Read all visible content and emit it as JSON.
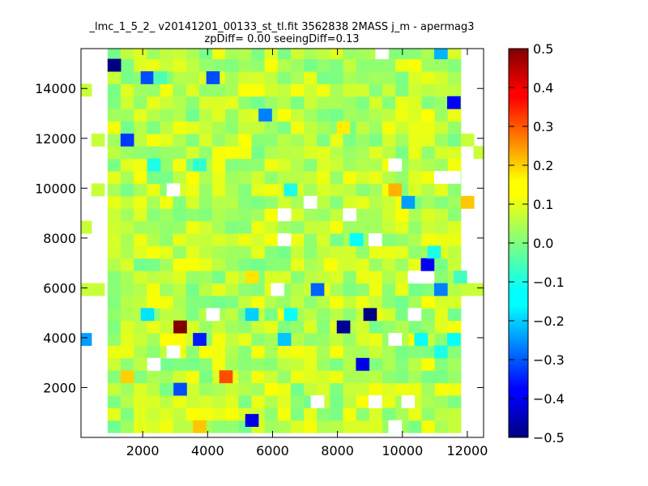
{
  "chart_data": {
    "type": "heatmap",
    "title_line1": "_lmc_1_5_2_ v20141201_00133_st_tl.fit 3562838 2MASS j_m - apermag3",
    "title_line2": "zpDiff= 0.00 seeingDiff=0.13",
    "xlim": [
      100,
      12500
    ],
    "ylim": [
      0,
      15600
    ],
    "xticks": [
      2000,
      4000,
      6000,
      8000,
      10000,
      12000
    ],
    "yticks": [
      2000,
      4000,
      6000,
      8000,
      10000,
      12000,
      14000
    ],
    "grid": false,
    "colormap": "jet",
    "clim": [
      -0.5,
      0.5
    ],
    "colorbar_ticks": [
      "0.5",
      "0.4",
      "0.3",
      "0.2",
      "0.1",
      "0.0",
      "−0.1",
      "−0.2",
      "−0.3",
      "−0.4",
      "−0.5"
    ],
    "cells_note": "bin centers in data units; value = magnitude difference",
    "cells": [
      {
        "x": 1120,
        "y": 14940,
        "v": -0.5
      },
      {
        "x": 2140,
        "y": 14440,
        "v": -0.3
      },
      {
        "x": 4160,
        "y": 14440,
        "v": -0.3
      },
      {
        "x": 11180,
        "y": 15440,
        "v": -0.2
      },
      {
        "x": 11580,
        "y": 13440,
        "v": -0.38
      },
      {
        "x": 5770,
        "y": 12940,
        "v": -0.25
      },
      {
        "x": 8180,
        "y": 12440,
        "v": 0.14
      },
      {
        "x": 1520,
        "y": 11940,
        "v": -0.32
      },
      {
        "x": 10170,
        "y": 9440,
        "v": -0.22
      },
      {
        "x": 9770,
        "y": 9940,
        "v": 0.2
      },
      {
        "x": 12000,
        "y": 9440,
        "v": 0.18
      },
      {
        "x": 7780,
        "y": 6940,
        "v": 0.12
      },
      {
        "x": 8580,
        "y": 7940,
        "v": -0.12
      },
      {
        "x": 10770,
        "y": 6940,
        "v": -0.38
      },
      {
        "x": 7380,
        "y": 5940,
        "v": -0.28
      },
      {
        "x": 11180,
        "y": 5940,
        "v": -0.25
      },
      {
        "x": 9000,
        "y": 4940,
        "v": -0.5
      },
      {
        "x": 8180,
        "y": 4440,
        "v": -0.48
      },
      {
        "x": 3150,
        "y": 4440,
        "v": 0.5
      },
      {
        "x": 3750,
        "y": 3940,
        "v": -0.35
      },
      {
        "x": 6360,
        "y": 3940,
        "v": -0.18
      },
      {
        "x": 8770,
        "y": 2940,
        "v": -0.4
      },
      {
        "x": 4560,
        "y": 2440,
        "v": 0.3
      },
      {
        "x": 3150,
        "y": 1940,
        "v": -0.3
      },
      {
        "x": 5360,
        "y": 690,
        "v": -0.4
      },
      {
        "x": 3750,
        "y": 440,
        "v": 0.18
      },
      {
        "x": 1520,
        "y": 2440,
        "v": 0.17
      },
      {
        "x": 2140,
        "y": 4940,
        "v": -0.15
      },
      {
        "x": 5360,
        "y": 4940,
        "v": -0.17
      },
      {
        "x": 6550,
        "y": 4940,
        "v": -0.12
      },
      {
        "x": 220,
        "y": 3940,
        "v": -0.22
      },
      {
        "x": 10570,
        "y": 3940,
        "v": -0.12
      },
      {
        "x": 11580,
        "y": 3940,
        "v": -0.12
      },
      {
        "x": 11180,
        "y": 3440,
        "v": -0.1
      },
      {
        "x": 5360,
        "y": 6440,
        "v": 0.15
      },
      {
        "x": 2340,
        "y": 10940,
        "v": -0.1
      },
      {
        "x": 3750,
        "y": 10940,
        "v": -0.08
      },
      {
        "x": 6550,
        "y": 9940,
        "v": -0.1
      },
      {
        "x": 2530,
        "y": 14440,
        "v": -0.05
      },
      {
        "x": 10970,
        "y": 7440,
        "v": -0.1
      },
      {
        "x": 11780,
        "y": 6440,
        "v": -0.06
      }
    ],
    "missing_cells": [
      {
        "x": 9370,
        "y": 15440
      },
      {
        "x": 9770,
        "y": 10940
      },
      {
        "x": 11180,
        "y": 10440
      },
      {
        "x": 11580,
        "y": 10440
      },
      {
        "x": 2940,
        "y": 9940
      },
      {
        "x": 6360,
        "y": 8940
      },
      {
        "x": 7160,
        "y": 9440
      },
      {
        "x": 8370,
        "y": 8940
      },
      {
        "x": 6360,
        "y": 7940
      },
      {
        "x": 9160,
        "y": 7940
      },
      {
        "x": 10370,
        "y": 6440
      },
      {
        "x": 10770,
        "y": 6440
      },
      {
        "x": 4160,
        "y": 4940
      },
      {
        "x": 6150,
        "y": 5940
      },
      {
        "x": 10370,
        "y": 4940
      },
      {
        "x": 2940,
        "y": 3440
      },
      {
        "x": 2340,
        "y": 2940
      },
      {
        "x": 9770,
        "y": 3940
      },
      {
        "x": 7380,
        "y": 1440
      },
      {
        "x": 9160,
        "y": 1440
      },
      {
        "x": 10170,
        "y": 1440
      },
      {
        "x": 9770,
        "y": 440
      }
    ]
  }
}
